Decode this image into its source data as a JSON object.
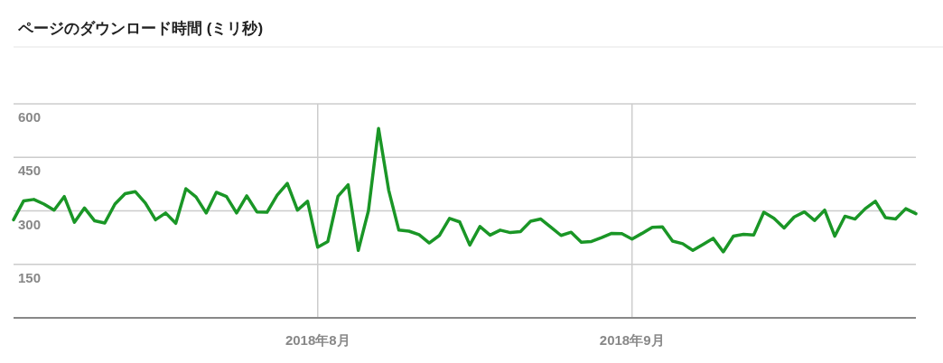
{
  "chart_data": {
    "type": "line",
    "title": "ページのダウンロード時間 (ミリ秒)",
    "x": [
      "2018-07-02",
      "2018-07-03",
      "2018-07-04",
      "2018-07-05",
      "2018-07-06",
      "2018-07-07",
      "2018-07-08",
      "2018-07-09",
      "2018-07-10",
      "2018-07-11",
      "2018-07-12",
      "2018-07-13",
      "2018-07-14",
      "2018-07-15",
      "2018-07-16",
      "2018-07-17",
      "2018-07-18",
      "2018-07-19",
      "2018-07-20",
      "2018-07-21",
      "2018-07-22",
      "2018-07-23",
      "2018-07-24",
      "2018-07-25",
      "2018-07-26",
      "2018-07-27",
      "2018-07-28",
      "2018-07-29",
      "2018-07-30",
      "2018-07-31",
      "2018-08-01",
      "2018-08-02",
      "2018-08-03",
      "2018-08-04",
      "2018-08-05",
      "2018-08-06",
      "2018-08-07",
      "2018-08-08",
      "2018-08-09",
      "2018-08-10",
      "2018-08-11",
      "2018-08-12",
      "2018-08-13",
      "2018-08-14",
      "2018-08-15",
      "2018-08-16",
      "2018-08-17",
      "2018-08-18",
      "2018-08-19",
      "2018-08-20",
      "2018-08-21",
      "2018-08-22",
      "2018-08-23",
      "2018-08-24",
      "2018-08-25",
      "2018-08-26",
      "2018-08-27",
      "2018-08-28",
      "2018-08-29",
      "2018-08-30",
      "2018-08-31",
      "2018-09-01",
      "2018-09-02",
      "2018-09-03",
      "2018-09-04",
      "2018-09-05",
      "2018-09-06",
      "2018-09-07",
      "2018-09-08",
      "2018-09-09",
      "2018-09-10",
      "2018-09-11",
      "2018-09-12",
      "2018-09-13",
      "2018-09-14",
      "2018-09-15",
      "2018-09-16",
      "2018-09-17",
      "2018-09-18",
      "2018-09-19",
      "2018-09-20",
      "2018-09-21",
      "2018-09-22",
      "2018-09-23",
      "2018-09-24",
      "2018-09-25",
      "2018-09-26",
      "2018-09-27",
      "2018-09-28",
      "2018-09-29"
    ],
    "series": [
      {
        "color": "#1a9626",
        "values": [
          275,
          328,
          332,
          319,
          302,
          340,
          268,
          308,
          272,
          266,
          319,
          348,
          354,
          322,
          275,
          294,
          265,
          362,
          339,
          294,
          352,
          340,
          294,
          342,
          297,
          296,
          344,
          377,
          302,
          327,
          198,
          214,
          341,
          373,
          189,
          300,
          531,
          358,
          246,
          243,
          233,
          210,
          231,
          279,
          269,
          204,
          256,
          232,
          246,
          239,
          242,
          271,
          277,
          254,
          231,
          240,
          212,
          214,
          225,
          237,
          236,
          221,
          237,
          254,
          255,
          215,
          208,
          189,
          206,
          223,
          185,
          229,
          234,
          232,
          296,
          279,
          252,
          283,
          297,
          273,
          302,
          229,
          285,
          277,
          306,
          327,
          281,
          277,
          306,
          292
        ]
      }
    ],
    "xlim": [
      "2018-07-02",
      "2018-09-29"
    ],
    "xticks": [
      {
        "value": "2018-08-01",
        "label": "2018年8月"
      },
      {
        "value": "2018-09-01",
        "label": "2018年9月"
      }
    ],
    "ylim": [
      0,
      600
    ],
    "yticks": [
      150,
      300,
      450,
      600
    ],
    "grid": true
  }
}
